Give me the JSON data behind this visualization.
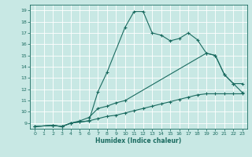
{
  "xlabel": "Humidex (Indice chaleur)",
  "xlim": [
    -0.5,
    23.5
  ],
  "ylim": [
    8.5,
    19.5
  ],
  "yticks": [
    9,
    10,
    11,
    12,
    13,
    14,
    15,
    16,
    17,
    18,
    19
  ],
  "xticks": [
    0,
    1,
    2,
    3,
    4,
    5,
    6,
    7,
    8,
    9,
    10,
    11,
    12,
    13,
    14,
    15,
    16,
    17,
    18,
    19,
    20,
    21,
    22,
    23
  ],
  "background_color": "#c8e8e4",
  "grid_color": "#ffffff",
  "line_color": "#1a6b60",
  "lines": [
    {
      "x": [
        0,
        2,
        3,
        4,
        5,
        6,
        7,
        8,
        10,
        11,
        12,
        13,
        14,
        15,
        16,
        17,
        18,
        19,
        20,
        21,
        22,
        23
      ],
      "y": [
        8.7,
        8.8,
        8.7,
        9.0,
        9.1,
        9.2,
        11.8,
        13.5,
        17.5,
        18.9,
        18.9,
        17.0,
        16.8,
        16.3,
        16.5,
        17.0,
        16.4,
        15.2,
        15.0,
        13.3,
        12.5,
        11.7
      ]
    },
    {
      "x": [
        0,
        2,
        3,
        4,
        5,
        6,
        7,
        8,
        9,
        10,
        19,
        20,
        21,
        22,
        23
      ],
      "y": [
        8.7,
        8.8,
        8.7,
        9.0,
        9.2,
        9.5,
        10.3,
        10.5,
        10.8,
        11.0,
        15.2,
        15.0,
        13.3,
        12.5,
        12.5
      ]
    },
    {
      "x": [
        0,
        2,
        3,
        4,
        5,
        6,
        7,
        8,
        9,
        10,
        11,
        12,
        13,
        14,
        15,
        16,
        17,
        18,
        19,
        20,
        21,
        22,
        23
      ],
      "y": [
        8.7,
        8.8,
        8.7,
        9.0,
        9.1,
        9.2,
        9.4,
        9.6,
        9.7,
        9.9,
        10.1,
        10.3,
        10.5,
        10.7,
        10.9,
        11.1,
        11.3,
        11.5,
        11.6,
        11.6,
        11.6,
        11.6,
        11.6
      ]
    }
  ]
}
